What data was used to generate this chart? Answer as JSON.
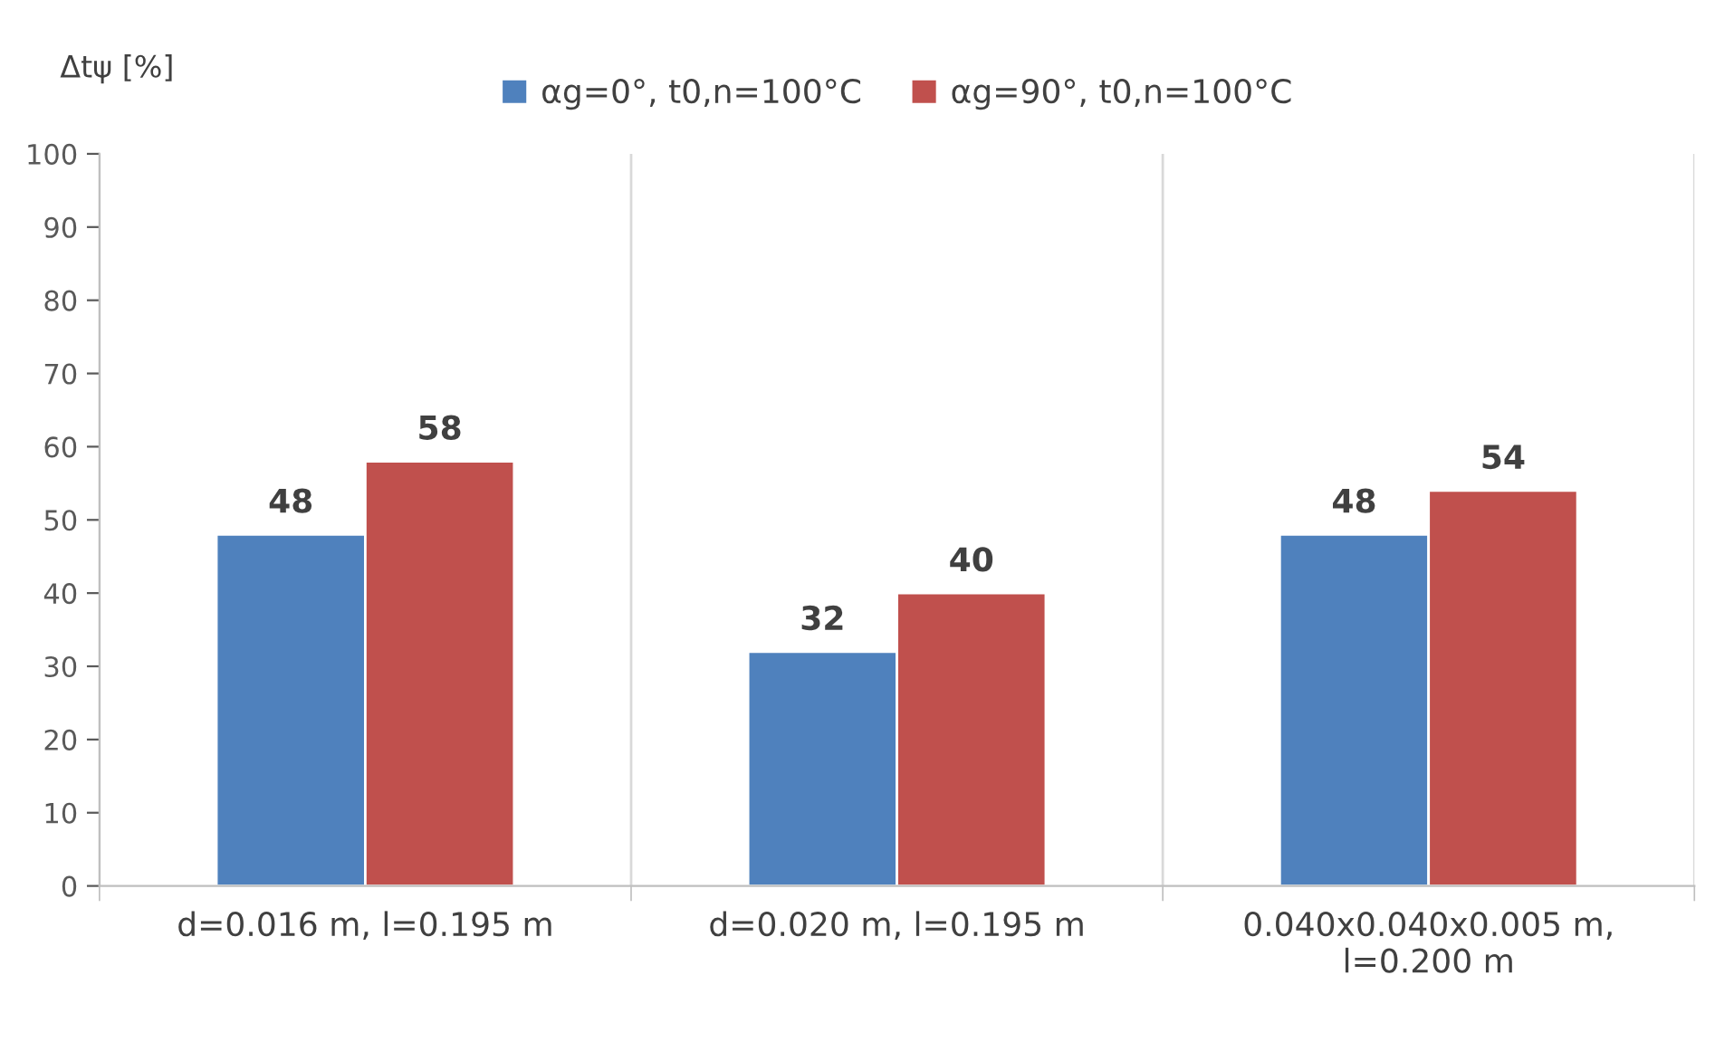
{
  "chart_data": {
    "type": "bar",
    "ylabel": "Δtψ [%]",
    "categories": [
      "d=0.016 m, l=0.195 m",
      "d=0.020 m, l=0.195 m",
      "0.040x0.040x0.005 m,\nl=0.200 m"
    ],
    "series": [
      {
        "name": "αg=0°, t0,n=100°C",
        "color": "#4f81bd",
        "values": [
          48,
          32,
          48
        ]
      },
      {
        "name": "αg=90°, t0,n=100°C",
        "color": "#c0504d",
        "values": [
          58,
          40,
          54
        ]
      }
    ],
    "ylim": [
      0,
      100
    ],
    "yticks": [
      0,
      10,
      20,
      30,
      40,
      50,
      60,
      70,
      80,
      90,
      100
    ],
    "grid": "x",
    "legend": "top",
    "data_labels": true
  }
}
